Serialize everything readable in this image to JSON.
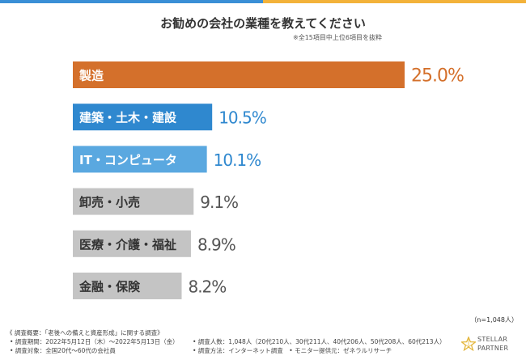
{
  "header": {
    "title": "お勧めの会社の業種を教えてください",
    "subnote": "※全15項目中上位6項目を抜粋"
  },
  "colors": {
    "top_bar_left": "#3a8fd6",
    "top_bar_right": "#f3b23a",
    "highlight": "#d4702b",
    "blue_dark": "#2f88cf",
    "blue_light": "#5aa8e0",
    "gray": "#c4c4c4"
  },
  "chart_data": {
    "type": "bar",
    "orientation": "horizontal",
    "categories": [
      "製造",
      "建築・土木・建設",
      "IT・コンピュータ",
      "卸売・小売",
      "医療・介護・福祉",
      "金融・保険"
    ],
    "values": [
      25.0,
      10.5,
      10.1,
      9.1,
      8.9,
      8.2
    ],
    "value_labels": [
      "25.0%",
      "10.5%",
      "10.1%",
      "9.1%",
      "8.9%",
      "8.2%"
    ],
    "bar_colors": [
      "#d4702b",
      "#2f88cf",
      "#5aa8e0",
      "#c4c4c4",
      "#c4c4c4",
      "#c4c4c4"
    ],
    "label_colors": [
      "#ffffff",
      "#ffffff",
      "#ffffff",
      "#333333",
      "#333333",
      "#333333"
    ],
    "value_colors": [
      "#d4702b",
      "#2f88cf",
      "#2f88cf",
      "#555555",
      "#555555",
      "#555555"
    ],
    "xlim": [
      0,
      25
    ],
    "title": "お勧めの会社の業種を教えてください",
    "grid": false
  },
  "sample": {
    "n_label": "（n=1,048人）"
  },
  "footer": {
    "overview": "《 調査概要：「老後への備えと資産形成」に関する調査》",
    "period": "• 調査期間：2022年5月12日（木）～2022年5月13日（金）",
    "target": "• 調査対象：全国20代～60代の会社員",
    "count": "• 調査人数：1,048人（20代210人、30代211人、40代206人、50代208人、60代213人）",
    "method": "• 調査方法：インターネット調査　• モニター提供元：ゼネラルリサーチ"
  },
  "logo": {
    "line1": "STELLAR",
    "line2": "PARTNER",
    "icon": "star-icon"
  }
}
